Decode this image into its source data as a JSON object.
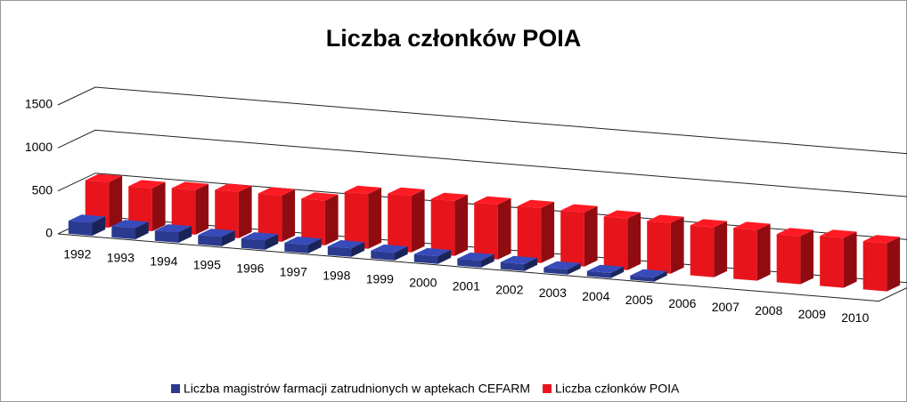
{
  "chart_data": {
    "type": "bar3d",
    "title": "Liczba członków POIA",
    "categories": [
      "1992",
      "1993",
      "1994",
      "1995",
      "1996",
      "1997",
      "1998",
      "1999",
      "2000",
      "2001",
      "2002",
      "2003",
      "2004",
      "2005",
      "2006",
      "2007",
      "2008",
      "2009",
      "2010"
    ],
    "series": [
      {
        "name": "Liczba magistrów farmacji zatrudnionych w aptekach CEFARM",
        "color": "#2a3a8f",
        "values": [
          150,
          130,
          120,
          110,
          110,
          100,
          100,
          90,
          90,
          80,
          80,
          60,
          60,
          50,
          null,
          null,
          null,
          null,
          null
        ]
      },
      {
        "name": "Liczba członków POIA",
        "color": "#e8141c",
        "values": [
          530,
          500,
          520,
          540,
          540,
          520,
          640,
          660,
          640,
          640,
          640,
          630,
          600,
          590,
          580,
          590,
          560,
          580,
          560
        ]
      }
    ],
    "ylim": [
      0,
      1500
    ],
    "yticks": [
      0,
      500,
      1000,
      1500
    ],
    "grid": true,
    "legend": "bottom"
  }
}
